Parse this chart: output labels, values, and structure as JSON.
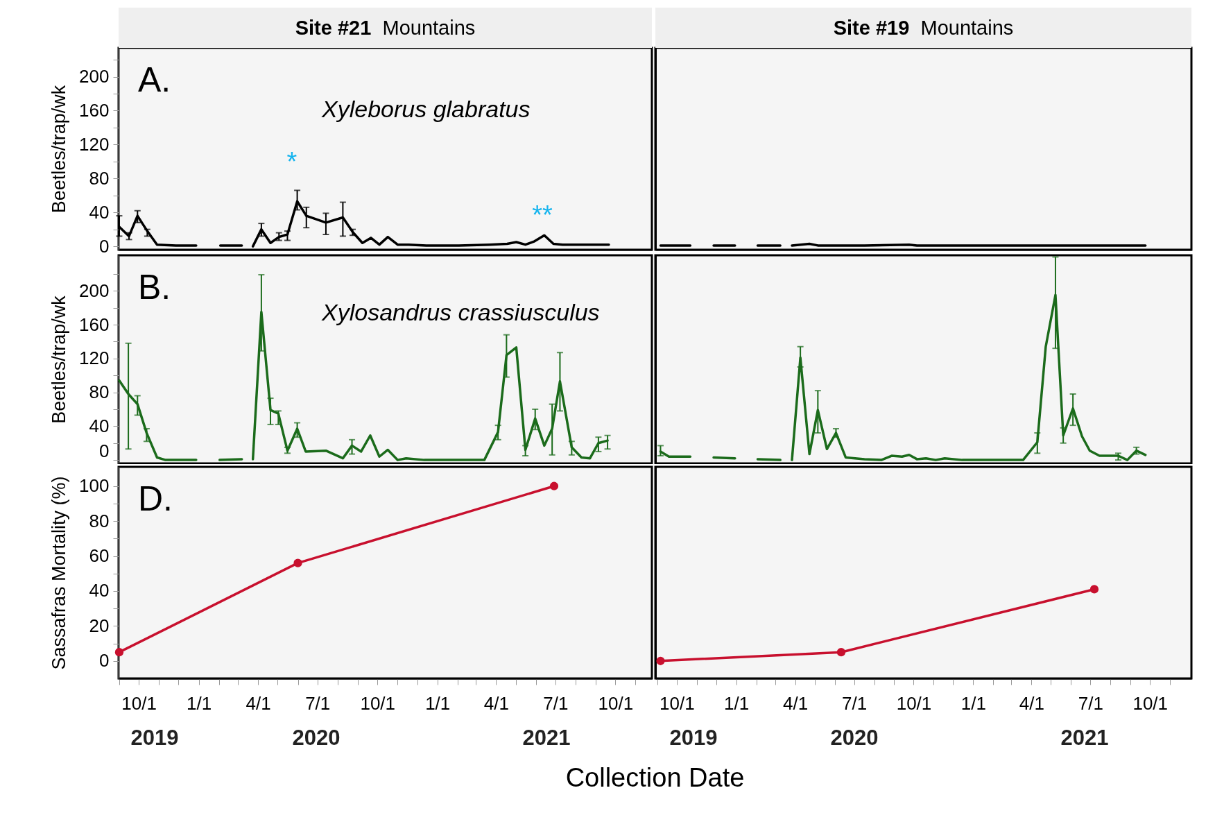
{
  "chart_data": [
    {
      "type": "line",
      "title": "Site #21",
      "subtitle": "Mountains",
      "ylabel": "Beetles/trap/wk",
      "annotations": [
        "A.",
        "Xyleborus glabratus",
        "*",
        "**"
      ],
      "x": [
        "2019-09-01",
        "2019-09-16",
        "2019-09-29",
        "2019-10-14",
        "2019-10-29",
        "2019-11-27",
        "2019-12-28",
        "2020-01-15",
        "2020-02-03",
        "2020-03-07",
        "2020-03-15",
        "2020-03-24",
        "2020-04-06",
        "2020-04-20",
        "2020-05-03",
        "2020-05-16",
        "2020-05-31",
        "2020-06-14",
        "2020-07-14",
        "2020-08-09",
        "2020-08-24",
        "2020-09-08",
        "2020-09-21",
        "2020-10-04",
        "2020-10-17",
        "2020-11-01",
        "2020-11-18",
        "2020-12-15",
        "2021-02-03",
        "2021-03-22",
        "2021-04-18",
        "2021-05-02",
        "2021-05-16",
        "2021-05-30",
        "2021-06-14",
        "2021-06-28",
        "2021-07-12",
        "2021-07-28",
        "2021-08-23",
        "2021-09-05",
        "2021-09-21"
      ],
      "series": [
        {
          "color": "#000000",
          "values": [
            23,
            12,
            36,
            18,
            2,
            1,
            1,
            null,
            1,
            1,
            null,
            0,
            20,
            4,
            11,
            14,
            53,
            36,
            28,
            34,
            17,
            4,
            10,
            2,
            11,
            2,
            2,
            1,
            1,
            2,
            3,
            5,
            2,
            6,
            13,
            3,
            2,
            2,
            2,
            2,
            2
          ],
          "errors": [
            [
              12,
              36
            ],
            [
              8,
              16
            ],
            [
              28,
              42
            ],
            [
              12,
              20
            ],
            null,
            null,
            null,
            null,
            null,
            null,
            null,
            null,
            [
              12,
              27
            ],
            null,
            [
              7,
              16
            ],
            [
              7,
              18
            ],
            [
              43,
              66
            ],
            [
              22,
              46
            ],
            [
              14,
              39
            ],
            [
              12,
              52
            ],
            [
              13,
              20
            ],
            null,
            null,
            null,
            null,
            null,
            null,
            null,
            null,
            null,
            null,
            null,
            null,
            null,
            null,
            null,
            null,
            null,
            null,
            null,
            null
          ]
        }
      ],
      "xlim": [
        "2019-08-31",
        "2021-11-26"
      ],
      "ylim": [
        -4,
        234
      ],
      "yticks": [
        0,
        {
          "value": 20,
          "label": null
        },
        40,
        {
          "value": 60,
          "label": null
        },
        80,
        {
          "value": 100,
          "label": null
        },
        120,
        {
          "value": 140,
          "label": null
        },
        160,
        {
          "value": 180,
          "label": null
        },
        200,
        {
          "value": 220,
          "label": null
        }
      ],
      "tick_labels": "y"
    },
    {
      "type": "line",
      "title": "Site #19",
      "subtitle": "Mountains",
      "x": [
        "2019-09-06",
        "2019-10-22",
        "2019-11-10",
        "2019-11-27",
        "2019-12-30",
        "2020-01-15",
        "2020-02-03",
        "2020-03-09",
        "2020-03-18",
        "2020-03-27",
        "2020-04-23",
        "2020-05-06",
        "2020-07-17",
        "2020-09-24",
        "2020-10-06",
        "2020-12-15",
        "2021-03-19",
        "2021-06-30",
        "2021-09-24"
      ],
      "series": [
        {
          "color": "#000000",
          "values": [
            1,
            1,
            null,
            1,
            1,
            null,
            1,
            1,
            null,
            1,
            3,
            1,
            1,
            2,
            1,
            1,
            1,
            1,
            1
          ]
        }
      ],
      "xlim": [
        "2019-08-29",
        "2021-12-04"
      ],
      "ylim": [
        -4,
        234
      ],
      "tick_labels": false
    },
    {
      "type": "line",
      "ylabel": "Beetles/trap/wk",
      "annotations": [
        "B.",
        "Xylosandrus crassiusculus"
      ],
      "x": [
        "2019-09-01",
        "2019-09-15",
        "2019-09-29",
        "2019-10-13",
        "2019-10-29",
        "2019-11-11",
        "2019-11-24",
        "2019-12-28",
        "2020-01-15",
        "2020-02-02",
        "2020-03-07",
        "2020-03-15",
        "2020-03-24",
        "2020-04-06",
        "2020-04-20",
        "2020-05-02",
        "2020-05-16",
        "2020-05-31",
        "2020-06-13",
        "2020-07-14",
        "2020-08-09",
        "2020-08-23",
        "2020-09-06",
        "2020-09-20",
        "2020-10-04",
        "2020-10-17",
        "2020-11-01",
        "2020-11-14",
        "2020-12-12",
        "2021-01-09",
        "2021-02-18",
        "2021-03-14",
        "2021-04-04",
        "2021-04-17",
        "2021-05-02",
        "2021-05-16",
        "2021-05-31",
        "2021-06-14",
        "2021-06-26",
        "2021-07-08",
        "2021-07-26",
        "2021-08-10",
        "2021-08-23",
        "2021-09-05",
        "2021-09-19"
      ],
      "series": [
        {
          "color": "#1b6b1b",
          "values": [
            94,
            78,
            66,
            32,
            3,
            0,
            0,
            0,
            null,
            0,
            1,
            null,
            1,
            175,
            59,
            55,
            11,
            37,
            10,
            11,
            2,
            17,
            10,
            29,
            4,
            12,
            0,
            2,
            0,
            0,
            0,
            0,
            33,
            124,
            133,
            12,
            49,
            17,
            37,
            93,
            15,
            3,
            2,
            20,
            23
          ],
          "errors": [
            null,
            [
              13,
              138
            ],
            [
              53,
              76
            ],
            [
              22,
              37
            ],
            null,
            null,
            null,
            null,
            null,
            null,
            null,
            null,
            null,
            [
              129,
              219
            ],
            [
              42,
              73
            ],
            [
              42,
              58
            ],
            [
              8,
              15
            ],
            [
              27,
              44
            ],
            null,
            null,
            null,
            [
              7,
              24
            ],
            null,
            null,
            null,
            null,
            null,
            null,
            null,
            null,
            null,
            null,
            [
              24,
              41
            ],
            [
              98,
              148
            ],
            null,
            [
              5,
              17
            ],
            [
              36,
              60
            ],
            null,
            [
              6,
              66
            ],
            [
              58,
              127
            ],
            [
              6,
              22
            ],
            null,
            null,
            [
              10,
              27
            ],
            [
              13,
              29
            ]
          ]
        }
      ],
      "xlim": [
        "2019-08-31",
        "2021-11-26"
      ],
      "ylim": [
        -4,
        242
      ],
      "yticks": [
        0,
        {
          "value": 20,
          "label": null
        },
        40,
        {
          "value": 60,
          "label": null
        },
        80,
        {
          "value": 100,
          "label": null
        },
        120,
        {
          "value": 140,
          "label": null
        },
        160,
        {
          "value": 180,
          "label": null
        },
        200,
        {
          "value": 220,
          "label": null
        }
      ],
      "tick_labels": "y"
    },
    {
      "type": "line",
      "x": [
        "2019-09-06",
        "2019-09-19",
        "2019-10-22",
        "2019-11-10",
        "2019-11-27",
        "2019-12-30",
        "2020-01-15",
        "2020-02-03",
        "2020-03-09",
        "2020-03-18",
        "2020-03-27",
        "2020-04-09",
        "2020-04-23",
        "2020-05-06",
        "2020-05-20",
        "2020-06-03",
        "2020-06-18",
        "2020-07-17",
        "2020-08-12",
        "2020-08-28",
        "2020-09-13",
        "2020-09-24",
        "2020-10-06",
        "2020-10-20",
        "2020-11-04",
        "2020-11-18",
        "2020-12-15",
        "2021-01-12",
        "2021-02-23",
        "2021-03-19",
        "2021-04-10",
        "2021-04-23",
        "2021-05-08",
        "2021-05-20",
        "2021-06-04",
        "2021-06-18",
        "2021-06-30",
        "2021-07-15",
        "2021-07-31",
        "2021-08-13",
        "2021-08-27",
        "2021-09-10",
        "2021-09-24"
      ],
      "series": [
        {
          "color": "#1b6b1b",
          "values": [
            10,
            4,
            4,
            null,
            3,
            2,
            null,
            1,
            0,
            null,
            0,
            121,
            7,
            59,
            13,
            32,
            3,
            1,
            0,
            5,
            4,
            6,
            1,
            2,
            0,
            2,
            0,
            0,
            0,
            0,
            21,
            134,
            195,
            29,
            61,
            28,
            11,
            5,
            5,
            5,
            0,
            11,
            6
          ],
          "errors": [
            [
              5,
              17
            ],
            null,
            null,
            null,
            null,
            null,
            null,
            null,
            null,
            null,
            null,
            [
              110,
              134
            ],
            null,
            [
              32,
              82
            ],
            null,
            [
              27,
              37
            ],
            null,
            null,
            null,
            null,
            null,
            null,
            null,
            null,
            null,
            null,
            null,
            null,
            null,
            null,
            [
              8,
              32
            ],
            null,
            [
              132,
              240
            ],
            [
              20,
              38
            ],
            [
              41,
              78
            ],
            null,
            null,
            null,
            null,
            [
              0,
              8
            ],
            null,
            [
              7,
              15
            ],
            null
          ]
        }
      ],
      "xlim": [
        "2019-08-29",
        "2021-12-04"
      ],
      "ylim": [
        -4,
        242
      ],
      "tick_labels": false
    },
    {
      "type": "line",
      "xlabel": "Collection Date",
      "ylabel": "Sassafras Mortality (%)",
      "annotations": [
        "D.",
        "2019",
        "2020",
        "2021"
      ],
      "x": [
        "2019-09-01",
        "2020-06-01",
        "2021-06-29"
      ],
      "series": [
        {
          "color": "#c8102e",
          "values": [
            5,
            56,
            100
          ]
        }
      ],
      "xlim": [
        "2019-08-31",
        "2021-11-26"
      ],
      "ylim": [
        -10,
        111
      ],
      "xticks": [
        {
          "value": "2019-09-01",
          "label": null
        },
        {
          "value": "2019-10-01",
          "label": "10/1"
        },
        {
          "value": "2019-11-01",
          "label": null
        },
        {
          "value": "2019-12-01",
          "label": null
        },
        {
          "value": "2020-01-01",
          "label": "1/1"
        },
        {
          "value": "2020-02-01",
          "label": null
        },
        {
          "value": "2020-03-01",
          "label": null
        },
        {
          "value": "2020-04-01",
          "label": "4/1"
        },
        {
          "value": "2020-05-01",
          "label": null
        },
        {
          "value": "2020-06-01",
          "label": null
        },
        {
          "value": "2020-07-01",
          "label": "7/1"
        },
        {
          "value": "2020-08-01",
          "label": null
        },
        {
          "value": "2020-09-01",
          "label": null
        },
        {
          "value": "2020-10-01",
          "label": "10/1"
        },
        {
          "value": "2020-11-01",
          "label": null
        },
        {
          "value": "2020-12-01",
          "label": null
        },
        {
          "value": "2021-01-01",
          "label": "1/1"
        },
        {
          "value": "2021-02-01",
          "label": null
        },
        {
          "value": "2021-03-01",
          "label": null
        },
        {
          "value": "2021-04-01",
          "label": "4/1"
        },
        {
          "value": "2021-05-01",
          "label": null
        },
        {
          "value": "2021-06-01",
          "label": null
        },
        {
          "value": "2021-07-01",
          "label": "7/1"
        },
        {
          "value": "2021-08-01",
          "label": null
        },
        {
          "value": "2021-09-01",
          "label": null
        },
        {
          "value": "2021-10-01",
          "label": "10/1"
        },
        {
          "value": "2021-11-01",
          "label": null
        }
      ],
      "yticks": [
        0,
        {
          "value": 10,
          "label": null
        },
        20,
        {
          "value": 30,
          "label": null
        },
        40,
        {
          "value": 50,
          "label": null
        },
        60,
        {
          "value": 70,
          "label": null
        },
        80,
        {
          "value": 90,
          "label": null
        },
        100
      ],
      "marker": "circle"
    },
    {
      "type": "line",
      "annotations": [
        "2019",
        "2020",
        "2021"
      ],
      "x": [
        "2019-09-06",
        "2020-06-11",
        "2021-07-07"
      ],
      "series": [
        {
          "color": "#c8102e",
          "values": [
            0,
            5,
            41
          ]
        }
      ],
      "xlim": [
        "2019-08-29",
        "2021-12-04"
      ],
      "ylim": [
        -10,
        111
      ],
      "xticks": [
        {
          "value": "2019-09-01",
          "label": null
        },
        {
          "value": "2019-10-01",
          "label": "10/1"
        },
        {
          "value": "2019-11-01",
          "label": null
        },
        {
          "value": "2019-12-01",
          "label": null
        },
        {
          "value": "2020-01-01",
          "label": "1/1"
        },
        {
          "value": "2020-02-01",
          "label": null
        },
        {
          "value": "2020-03-01",
          "label": null
        },
        {
          "value": "2020-04-01",
          "label": "4/1"
        },
        {
          "value": "2020-05-01",
          "label": null
        },
        {
          "value": "2020-06-01",
          "label": null
        },
        {
          "value": "2020-07-01",
          "label": "7/1"
        },
        {
          "value": "2020-08-01",
          "label": null
        },
        {
          "value": "2020-09-01",
          "label": null
        },
        {
          "value": "2020-10-01",
          "label": "10/1"
        },
        {
          "value": "2020-11-01",
          "label": null
        },
        {
          "value": "2020-12-01",
          "label": null
        },
        {
          "value": "2021-01-01",
          "label": "1/1"
        },
        {
          "value": "2021-02-01",
          "label": null
        },
        {
          "value": "2021-03-01",
          "label": null
        },
        {
          "value": "2021-04-01",
          "label": "4/1"
        },
        {
          "value": "2021-05-01",
          "label": null
        },
        {
          "value": "2021-06-01",
          "label": null
        },
        {
          "value": "2021-07-01",
          "label": "7/1"
        },
        {
          "value": "2021-08-01",
          "label": null
        },
        {
          "value": "2021-09-01",
          "label": null
        },
        {
          "value": "2021-10-01",
          "label": "10/1"
        },
        {
          "value": "2021-11-01",
          "label": null
        }
      ],
      "tick_labels": "x",
      "marker": "circle"
    }
  ]
}
